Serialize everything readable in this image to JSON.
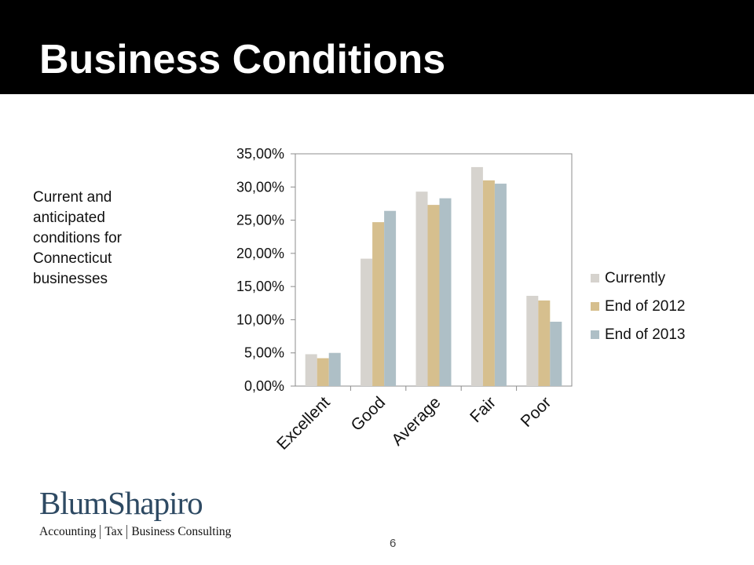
{
  "slide": {
    "title": "Business Conditions",
    "description": "Current and anticipated conditions for Connecticut businesses",
    "page_number": "6"
  },
  "logo": {
    "name": "BlumShapiro",
    "tagline": [
      "Accounting",
      "Tax",
      "Business Consulting"
    ]
  },
  "chart_data": {
    "type": "bar",
    "categories": [
      "Excellent",
      "Good",
      "Average",
      "Fair",
      "Poor"
    ],
    "series": [
      {
        "name": "Currently",
        "color": "#d6d3ce",
        "values": [
          4.8,
          19.2,
          29.3,
          33.0,
          13.6
        ]
      },
      {
        "name": "End of 2012",
        "color": "#d6bf8e",
        "values": [
          4.2,
          24.7,
          27.3,
          31.0,
          12.9
        ]
      },
      {
        "name": "End of 2013",
        "color": "#aebfc6",
        "values": [
          5.0,
          26.4,
          28.3,
          30.5,
          9.7
        ]
      }
    ],
    "yticks": [
      "0,00%",
      "5,00%",
      "10,00%",
      "15,00%",
      "20,00%",
      "25,00%",
      "30,00%",
      "35,00%"
    ],
    "ylim": [
      0,
      35
    ],
    "ytick_step": 5,
    "grid": false,
    "legend": "right"
  }
}
